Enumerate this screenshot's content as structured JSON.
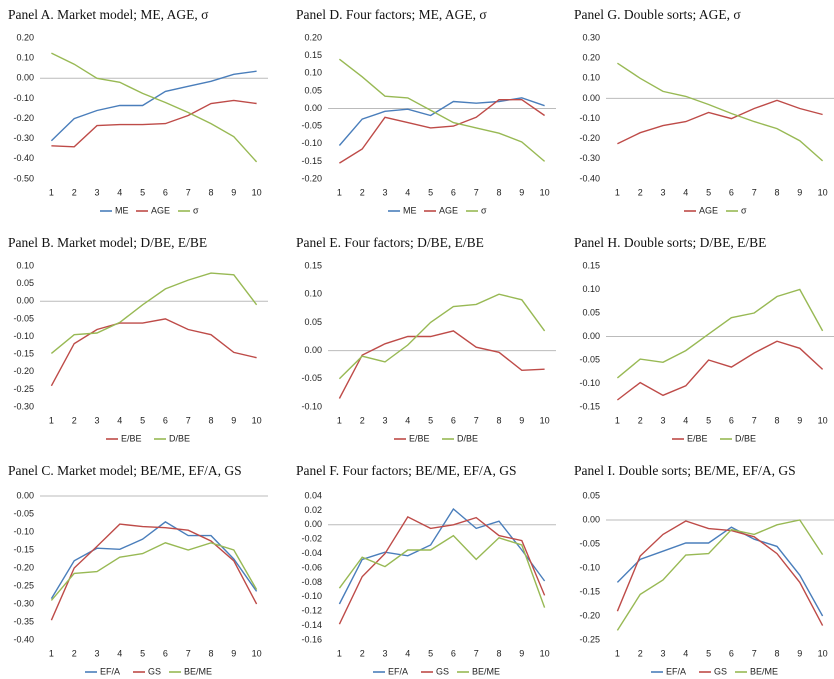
{
  "chart_data": [
    {
      "type": "line",
      "title": "Panel A. Market model; ME, AGE, σ",
      "categories": [
        "1",
        "2",
        "3",
        "4",
        "5",
        "6",
        "7",
        "8",
        "9",
        "10"
      ],
      "series": [
        {
          "name": "ME",
          "color": "#4a7ebb",
          "values": [
            -0.31,
            -0.2,
            -0.16,
            -0.135,
            -0.135,
            -0.065,
            -0.04,
            -0.015,
            0.02,
            0.035
          ]
        },
        {
          "name": "AGE",
          "color": "#be4b48",
          "values": [
            -0.335,
            -0.34,
            -0.235,
            -0.23,
            -0.23,
            -0.225,
            -0.185,
            -0.125,
            -0.11,
            -0.125
          ]
        },
        {
          "name": "σ",
          "color": "#98b954",
          "values": [
            0.125,
            0.07,
            0.0,
            -0.02,
            -0.075,
            -0.12,
            -0.17,
            -0.225,
            -0.29,
            -0.415
          ]
        }
      ],
      "ylim": [
        -0.5,
        0.2
      ],
      "yticks": [
        {
          "value": 0.2,
          "label": "0.20"
        },
        {
          "value": 0.1,
          "label": "0.10"
        },
        {
          "value": 0,
          "label": "0.00"
        },
        {
          "value": -0.1,
          "label": "-0.10"
        },
        {
          "value": -0.2,
          "label": "-0.20"
        },
        {
          "value": -0.3,
          "label": "-0.30"
        },
        {
          "value": -0.4,
          "label": "-0.40"
        },
        {
          "value": -0.5,
          "label": "-0.50"
        }
      ],
      "legend": "bottom"
    },
    {
      "type": "line",
      "title": "Panel D. Four factors; ME, AGE, σ",
      "categories": [
        "1",
        "2",
        "3",
        "4",
        "5",
        "6",
        "7",
        "8",
        "9",
        "10"
      ],
      "series": [
        {
          "name": "ME",
          "color": "#4a7ebb",
          "values": [
            -0.105,
            -0.03,
            -0.008,
            -0.002,
            -0.02,
            0.02,
            0.015,
            0.02,
            0.03,
            0.008
          ]
        },
        {
          "name": "AGE",
          "color": "#be4b48",
          "values": [
            -0.155,
            -0.115,
            -0.025,
            -0.04,
            -0.055,
            -0.05,
            -0.025,
            0.025,
            0.025,
            -0.02
          ]
        },
        {
          "name": "σ",
          "color": "#98b954",
          "values": [
            0.14,
            0.09,
            0.035,
            0.03,
            -0.005,
            -0.04,
            -0.055,
            -0.07,
            -0.095,
            -0.15
          ]
        }
      ],
      "ylim": [
        -0.2,
        0.2
      ],
      "yticks": [
        {
          "value": 0.2,
          "label": "0.20"
        },
        {
          "value": 0.15,
          "label": "0.15"
        },
        {
          "value": 0.1,
          "label": "0.10"
        },
        {
          "value": 0.05,
          "label": "0.05"
        },
        {
          "value": 0,
          "label": "0.00"
        },
        {
          "value": -0.05,
          "label": "-0.05"
        },
        {
          "value": -0.1,
          "label": "-0.10"
        },
        {
          "value": -0.15,
          "label": "-0.15"
        },
        {
          "value": -0.2,
          "label": "-0.20"
        }
      ],
      "legend": "bottom"
    },
    {
      "type": "line",
      "title": "Panel G. Double sorts; AGE, σ",
      "categories": [
        "1",
        "2",
        "3",
        "4",
        "5",
        "6",
        "7",
        "8",
        "9",
        "10"
      ],
      "series": [
        {
          "name": "AGE",
          "color": "#be4b48",
          "values": [
            -0.225,
            -0.17,
            -0.135,
            -0.115,
            -0.07,
            -0.1,
            -0.05,
            -0.01,
            -0.05,
            -0.08
          ]
        },
        {
          "name": "σ",
          "color": "#98b954",
          "values": [
            0.175,
            0.1,
            0.035,
            0.01,
            -0.03,
            -0.075,
            -0.115,
            -0.15,
            -0.21,
            -0.31
          ]
        }
      ],
      "ylim": [
        -0.4,
        0.3
      ],
      "yticks": [
        {
          "value": 0.3,
          "label": "0.30"
        },
        {
          "value": 0.2,
          "label": "0.20"
        },
        {
          "value": 0.1,
          "label": "0.10"
        },
        {
          "value": 0,
          "label": "0.00"
        },
        {
          "value": -0.1,
          "label": "-0.10"
        },
        {
          "value": -0.2,
          "label": "-0.20"
        },
        {
          "value": -0.3,
          "label": "-0.30"
        },
        {
          "value": -0.4,
          "label": "-0.40"
        }
      ],
      "legend": "bottom"
    },
    {
      "type": "line",
      "title": "Panel B. Market model; D/BE, E/BE",
      "categories": [
        "1",
        "2",
        "3",
        "4",
        "5",
        "6",
        "7",
        "8",
        "9",
        "10"
      ],
      "series": [
        {
          "name": "E/BE",
          "color": "#be4b48",
          "values": [
            -0.24,
            -0.12,
            -0.08,
            -0.062,
            -0.062,
            -0.05,
            -0.08,
            -0.095,
            -0.145,
            -0.16
          ]
        },
        {
          "name": "D/BE",
          "color": "#98b954",
          "values": [
            -0.148,
            -0.095,
            -0.09,
            -0.06,
            -0.01,
            0.035,
            0.06,
            0.08,
            0.075,
            -0.01
          ]
        }
      ],
      "ylim": [
        -0.3,
        0.1
      ],
      "yticks": [
        {
          "value": 0.1,
          "label": "0.10"
        },
        {
          "value": 0.05,
          "label": "0.05"
        },
        {
          "value": 0,
          "label": "0.00"
        },
        {
          "value": -0.05,
          "label": "-0.05"
        },
        {
          "value": -0.1,
          "label": "-0.10"
        },
        {
          "value": -0.15,
          "label": "-0.15"
        },
        {
          "value": -0.2,
          "label": "-0.20"
        },
        {
          "value": -0.25,
          "label": "-0.25"
        },
        {
          "value": -0.3,
          "label": "-0.30"
        }
      ],
      "legend": "bottom"
    },
    {
      "type": "line",
      "title": "Panel E. Four factors; D/BE, E/BE",
      "categories": [
        "1",
        "2",
        "3",
        "4",
        "5",
        "6",
        "7",
        "8",
        "9",
        "10"
      ],
      "series": [
        {
          "name": "E/BE",
          "color": "#be4b48",
          "values": [
            -0.085,
            -0.008,
            0.012,
            0.025,
            0.025,
            0.035,
            0.006,
            -0.003,
            -0.035,
            -0.033
          ]
        },
        {
          "name": "D/BE",
          "color": "#98b954",
          "values": [
            -0.05,
            -0.01,
            -0.02,
            0.01,
            0.05,
            0.078,
            0.082,
            0.1,
            0.09,
            0.035
          ]
        }
      ],
      "ylim": [
        -0.1,
        0.15
      ],
      "yticks": [
        {
          "value": 0.15,
          "label": "0.15"
        },
        {
          "value": 0.1,
          "label": "0.10"
        },
        {
          "value": 0.05,
          "label": "0.05"
        },
        {
          "value": 0,
          "label": "0.00"
        },
        {
          "value": -0.05,
          "label": "-0.05"
        },
        {
          "value": -0.1,
          "label": "-0.10"
        }
      ],
      "legend": "bottom"
    },
    {
      "type": "line",
      "title": "Panel H. Double sorts; D/BE, E/BE",
      "categories": [
        "1",
        "2",
        "3",
        "4",
        "5",
        "6",
        "7",
        "8",
        "9",
        "10"
      ],
      "series": [
        {
          "name": "E/BE",
          "color": "#be4b48",
          "values": [
            -0.135,
            -0.098,
            -0.125,
            -0.105,
            -0.05,
            -0.065,
            -0.035,
            -0.01,
            -0.025,
            -0.07
          ]
        },
        {
          "name": "D/BE",
          "color": "#98b954",
          "values": [
            -0.088,
            -0.048,
            -0.055,
            -0.03,
            0.005,
            0.04,
            0.05,
            0.085,
            0.1,
            0.012
          ]
        }
      ],
      "ylim": [
        -0.15,
        0.15
      ],
      "yticks": [
        {
          "value": 0.15,
          "label": "0.15"
        },
        {
          "value": 0.1,
          "label": "0.10"
        },
        {
          "value": 0.05,
          "label": "0.05"
        },
        {
          "value": 0,
          "label": "0.00"
        },
        {
          "value": -0.05,
          "label": "-0.05"
        },
        {
          "value": -0.1,
          "label": "-0.10"
        },
        {
          "value": -0.15,
          "label": "-0.15"
        }
      ],
      "legend": "bottom"
    },
    {
      "type": "line",
      "title": "Panel C. Market model; BE/ME, EF/A, GS",
      "categories": [
        "1",
        "2",
        "3",
        "4",
        "5",
        "6",
        "7",
        "8",
        "9",
        "10"
      ],
      "series": [
        {
          "name": "EF/A",
          "color": "#4a7ebb",
          "values": [
            -0.285,
            -0.18,
            -0.145,
            -0.148,
            -0.12,
            -0.072,
            -0.11,
            -0.11,
            -0.175,
            -0.265
          ]
        },
        {
          "name": "GS",
          "color": "#be4b48",
          "values": [
            -0.345,
            -0.2,
            -0.14,
            -0.078,
            -0.085,
            -0.088,
            -0.095,
            -0.125,
            -0.18,
            -0.3
          ]
        },
        {
          "name": "BE/ME",
          "color": "#98b954",
          "values": [
            -0.29,
            -0.215,
            -0.21,
            -0.17,
            -0.16,
            -0.13,
            -0.15,
            -0.13,
            -0.15,
            -0.26
          ]
        }
      ],
      "ylim": [
        -0.4,
        0
      ],
      "yticks": [
        {
          "value": 0,
          "label": "0.00"
        },
        {
          "value": -0.05,
          "label": "-0.05"
        },
        {
          "value": -0.1,
          "label": "-0.10"
        },
        {
          "value": -0.15,
          "label": "-0.15"
        },
        {
          "value": -0.2,
          "label": "-0.20"
        },
        {
          "value": -0.25,
          "label": "-0.25"
        },
        {
          "value": -0.3,
          "label": "-0.30"
        },
        {
          "value": -0.35,
          "label": "-0.35"
        },
        {
          "value": -0.4,
          "label": "-0.40"
        }
      ],
      "legend": "bottom"
    },
    {
      "type": "line",
      "title": "Panel F. Four factors; BE/ME, EF/A, GS",
      "categories": [
        "1",
        "2",
        "3",
        "4",
        "5",
        "6",
        "7",
        "8",
        "9",
        "10"
      ],
      "series": [
        {
          "name": "EF/A",
          "color": "#4a7ebb",
          "values": [
            -0.11,
            -0.048,
            -0.038,
            -0.043,
            -0.028,
            0.022,
            -0.005,
            0.005,
            -0.035,
            -0.078
          ]
        },
        {
          "name": "GS",
          "color": "#be4b48",
          "values": [
            -0.138,
            -0.072,
            -0.04,
            0.011,
            -0.005,
            0.0,
            0.01,
            -0.015,
            -0.022,
            -0.098
          ]
        },
        {
          "name": "BE/ME",
          "color": "#98b954",
          "values": [
            -0.088,
            -0.045,
            -0.058,
            -0.035,
            -0.035,
            -0.015,
            -0.048,
            -0.018,
            -0.028,
            -0.115
          ]
        }
      ],
      "ylim": [
        -0.16,
        0.04
      ],
      "yticks": [
        {
          "value": 0.04,
          "label": "0.04"
        },
        {
          "value": 0.02,
          "label": "0.02"
        },
        {
          "value": 0,
          "label": "0.00"
        },
        {
          "value": -0.02,
          "label": "-0.02"
        },
        {
          "value": -0.04,
          "label": "-0.04"
        },
        {
          "value": -0.06,
          "label": "-0.06"
        },
        {
          "value": -0.08,
          "label": "-0.08"
        },
        {
          "value": -0.1,
          "label": "-0.10"
        },
        {
          "value": -0.12,
          "label": "-0.12"
        },
        {
          "value": -0.14,
          "label": "-0.14"
        },
        {
          "value": -0.16,
          "label": "-0.16"
        }
      ],
      "legend": "bottom"
    },
    {
      "type": "line",
      "title": "Panel I. Double sorts; BE/ME, EF/A, GS",
      "categories": [
        "1",
        "2",
        "3",
        "4",
        "5",
        "6",
        "7",
        "8",
        "9",
        "10"
      ],
      "series": [
        {
          "name": "EF/A",
          "color": "#4a7ebb",
          "values": [
            -0.13,
            -0.082,
            -0.065,
            -0.048,
            -0.048,
            -0.015,
            -0.04,
            -0.055,
            -0.115,
            -0.2
          ]
        },
        {
          "name": "GS",
          "color": "#be4b48",
          "values": [
            -0.19,
            -0.075,
            -0.03,
            -0.002,
            -0.018,
            -0.022,
            -0.035,
            -0.07,
            -0.13,
            -0.22
          ]
        },
        {
          "name": "BE/ME",
          "color": "#98b954",
          "values": [
            -0.23,
            -0.155,
            -0.125,
            -0.073,
            -0.07,
            -0.02,
            -0.03,
            -0.01,
            0.0,
            -0.072
          ]
        }
      ],
      "ylim": [
        -0.25,
        0.05
      ],
      "yticks": [
        {
          "value": 0.05,
          "label": "0.05"
        },
        {
          "value": 0,
          "label": "0.00"
        },
        {
          "value": -0.05,
          "label": "-0.05"
        },
        {
          "value": -0.1,
          "label": "-0.10"
        },
        {
          "value": -0.15,
          "label": "-0.15"
        },
        {
          "value": -0.2,
          "label": "-0.20"
        },
        {
          "value": -0.25,
          "label": "-0.25"
        }
      ],
      "legend": "bottom"
    }
  ]
}
